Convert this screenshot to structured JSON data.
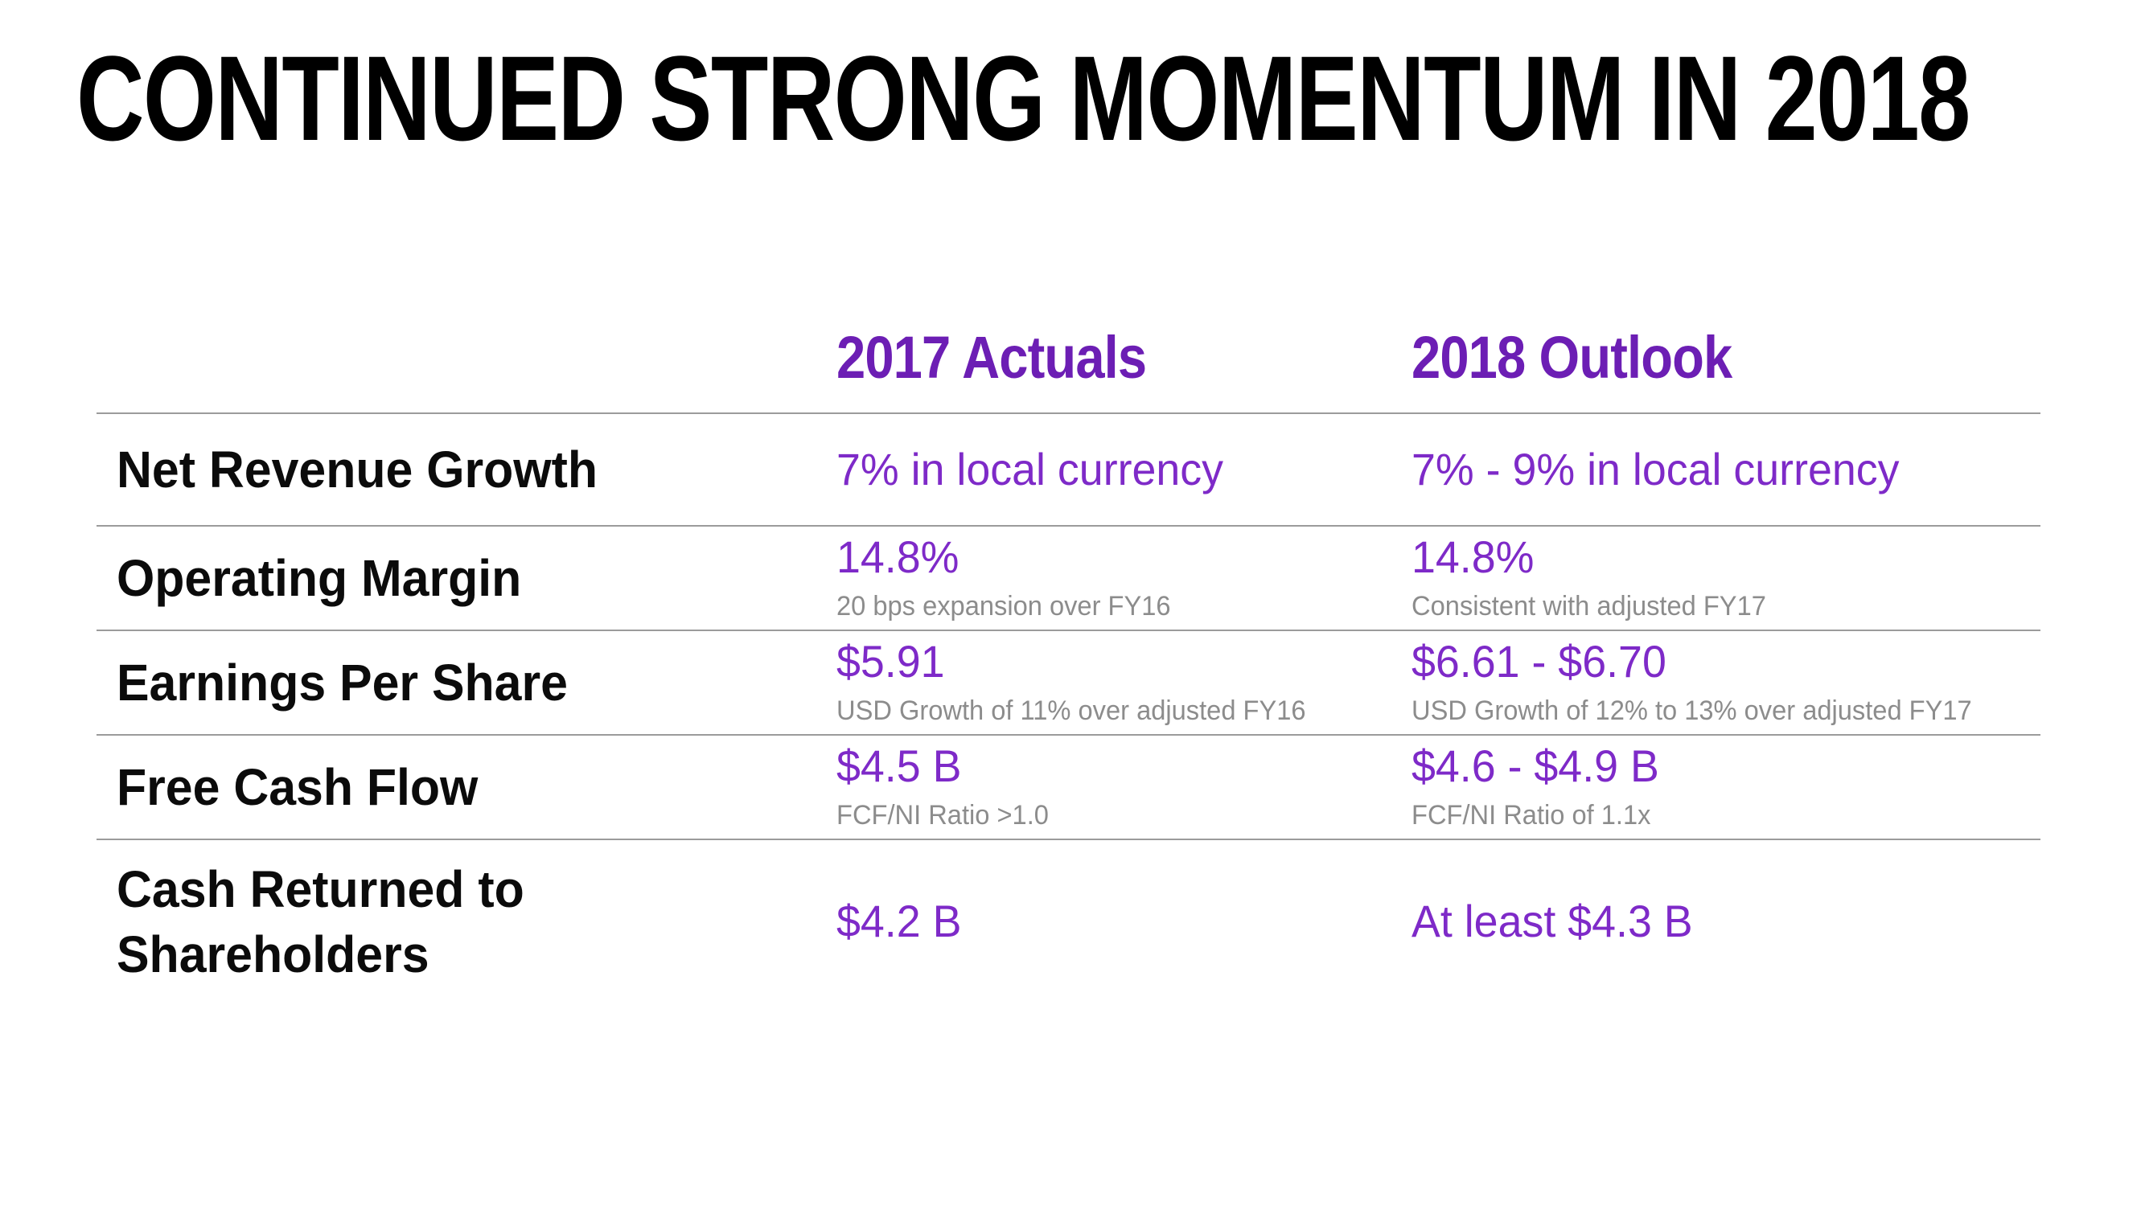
{
  "title": "CONTINUED STRONG MOMENTUM IN 2018",
  "colors": {
    "background": "#ffffff",
    "title_black": "#000000",
    "header_purple": "#6C1EB4",
    "value_purple": "#7E2AC8",
    "note_gray": "#8C8C8C",
    "divider_gray": "#9B9B9B"
  },
  "table": {
    "columns": [
      "2017 Actuals",
      "2018 Outlook"
    ],
    "rows": [
      {
        "label": "Net Revenue Growth",
        "actual": {
          "value": "7% in local currency",
          "note": ""
        },
        "outlook": {
          "value": "7% - 9% in local currency",
          "note": ""
        }
      },
      {
        "label": "Operating Margin",
        "actual": {
          "value": "14.8%",
          "note": "20 bps expansion over FY16"
        },
        "outlook": {
          "value": "14.8%",
          "note": "Consistent with adjusted FY17"
        }
      },
      {
        "label": "Earnings Per Share",
        "actual": {
          "value": "$5.91",
          "note": "USD Growth of 11% over adjusted FY16"
        },
        "outlook": {
          "value": "$6.61 - $6.70",
          "note": "USD Growth of 12% to 13% over adjusted FY17"
        }
      },
      {
        "label": "Free Cash Flow",
        "actual": {
          "value": "$4.5 B",
          "note": "FCF/NI Ratio >1.0"
        },
        "outlook": {
          "value": "$4.6 - $4.9 B",
          "note": "FCF/NI Ratio of 1.1x"
        }
      },
      {
        "label": "Cash Returned to Shareholders",
        "actual": {
          "value": "$4.2 B",
          "note": ""
        },
        "outlook": {
          "value": "At least $4.3 B",
          "note": ""
        }
      }
    ]
  }
}
